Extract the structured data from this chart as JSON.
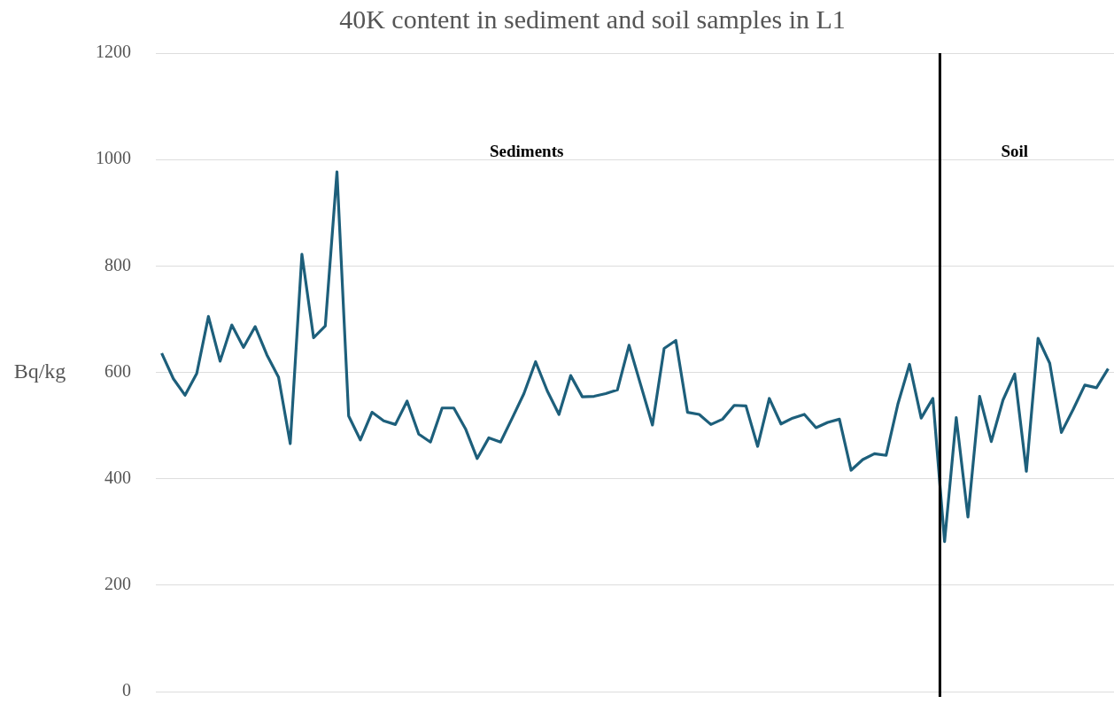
{
  "chart_data": {
    "type": "line",
    "title": "40K content in sediment and soil samples in L1",
    "ylabel": "Bq/kg",
    "categories": [
      null,
      null,
      null,
      null,
      null,
      null,
      null,
      null,
      null,
      null,
      null,
      null,
      null,
      null,
      null,
      null,
      null,
      null,
      null,
      null,
      null,
      null,
      null,
      null,
      null,
      null,
      null,
      null,
      null,
      null,
      null,
      null,
      null,
      null,
      null,
      null,
      null,
      null,
      null,
      null,
      null,
      null,
      null,
      null,
      null,
      null,
      null,
      null,
      null,
      null,
      null,
      null,
      null,
      null,
      null,
      null,
      null,
      null,
      null,
      null,
      null,
      null,
      null,
      null,
      null,
      null,
      null,
      null,
      null,
      null,
      null,
      null,
      null,
      null,
      null,
      null,
      null,
      null,
      null,
      null,
      null,
      null
    ],
    "series": [
      {
        "color": "#1d5f7b",
        "values": [
          636,
          588,
          557,
          598,
          705,
          621,
          689,
          647,
          686,
          633,
          591,
          466,
          822,
          665,
          687,
          977,
          518,
          473,
          525,
          509,
          502,
          546,
          484,
          469,
          533,
          533,
          494,
          438,
          477,
          469,
          514,
          560,
          620,
          565,
          521,
          594,
          554,
          555,
          560,
          567,
          651,
          576,
          501,
          645,
          660,
          525,
          521,
          502,
          512,
          538,
          537,
          461,
          551,
          503,
          514,
          521,
          496,
          506,
          512,
          416,
          436,
          447,
          444,
          540,
          615,
          514,
          551,
          282,
          515,
          328,
          555,
          470,
          548,
          597,
          414,
          664,
          617,
          487,
          530,
          576,
          571,
          607
        ]
      }
    ],
    "ylim": [
      0,
      1200
    ],
    "yticks": [
      0,
      200,
      400,
      600,
      800,
      1000,
      1200
    ],
    "grid": "y",
    "tick_labels": "y",
    "legend": false,
    "marker": "none",
    "line_style": "solid",
    "annotations": [
      "Sediments",
      "Soil"
    ]
  }
}
